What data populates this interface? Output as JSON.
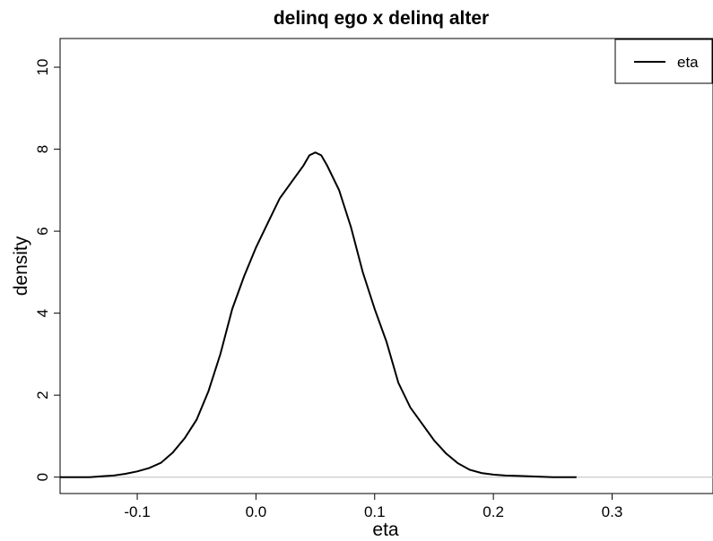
{
  "chart_data": {
    "type": "line",
    "title": "delinq ego x delinq alter",
    "xlabel": "eta",
    "ylabel": "density",
    "xlim": [
      -0.165,
      0.385
    ],
    "ylim": [
      -0.4,
      10.7
    ],
    "xticks": [
      -0.1,
      0.0,
      0.1,
      0.2,
      0.3
    ],
    "xtick_labels": [
      "-0.1",
      "0.0",
      "0.1",
      "0.2",
      "0.3"
    ],
    "yticks": [
      0,
      2,
      4,
      6,
      8,
      10
    ],
    "ytick_labels": [
      "0",
      "2",
      "4",
      "6",
      "8",
      "10"
    ],
    "reference_line_y": 0,
    "legend": {
      "position": "top-right",
      "entries": [
        "eta"
      ]
    },
    "grid": false,
    "series": [
      {
        "name": "eta",
        "color": "#000000",
        "x": [
          -0.165,
          -0.14,
          -0.13,
          -0.12,
          -0.11,
          -0.1,
          -0.09,
          -0.08,
          -0.07,
          -0.06,
          -0.05,
          -0.04,
          -0.03,
          -0.02,
          -0.01,
          0.0,
          0.01,
          0.02,
          0.03,
          0.04,
          0.045,
          0.05,
          0.055,
          0.06,
          0.07,
          0.08,
          0.09,
          0.1,
          0.11,
          0.12,
          0.13,
          0.14,
          0.15,
          0.16,
          0.17,
          0.18,
          0.19,
          0.2,
          0.21,
          0.22,
          0.23,
          0.24,
          0.25,
          0.27
        ],
        "y": [
          0.0,
          0.0,
          0.02,
          0.04,
          0.08,
          0.14,
          0.22,
          0.35,
          0.6,
          0.95,
          1.4,
          2.1,
          3.0,
          4.1,
          4.9,
          5.6,
          6.2,
          6.8,
          7.2,
          7.6,
          7.85,
          7.92,
          7.85,
          7.6,
          7.0,
          6.1,
          5.0,
          4.1,
          3.3,
          2.3,
          1.7,
          1.3,
          0.9,
          0.58,
          0.34,
          0.18,
          0.1,
          0.06,
          0.04,
          0.03,
          0.02,
          0.01,
          0.0,
          0.0
        ]
      }
    ]
  }
}
